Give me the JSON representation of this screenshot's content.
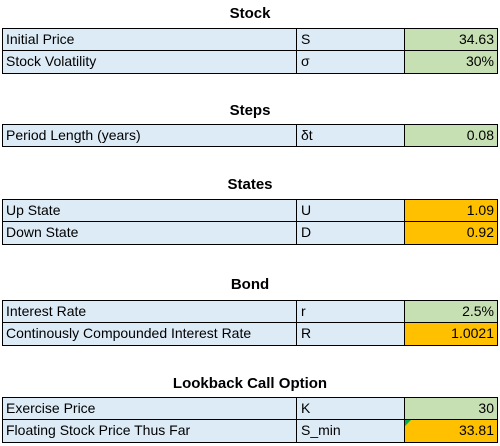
{
  "sections": {
    "stock": {
      "title": "Stock",
      "rows": [
        {
          "label": "Initial Price",
          "symbol": "S",
          "value": "34.63"
        },
        {
          "label": "Stock Volatility",
          "symbol": "σ",
          "value": "30%"
        }
      ]
    },
    "steps": {
      "title": "Steps",
      "rows": [
        {
          "label": "Period Length (years)",
          "symbol": "δt",
          "value": "0.08"
        }
      ]
    },
    "states": {
      "title": "States",
      "rows": [
        {
          "label": "Up State",
          "symbol": "U",
          "value": "1.09"
        },
        {
          "label": "Down State",
          "symbol": "D",
          "value": "0.92"
        }
      ]
    },
    "bond": {
      "title": "Bond",
      "rows": [
        {
          "label": "Interest Rate",
          "symbol": "r",
          "value": "2.5%"
        },
        {
          "label": "Continously Compounded Interest Rate",
          "symbol": "R",
          "value": "1.0021"
        }
      ]
    },
    "lookback": {
      "title": "Lookback Call Option",
      "rows": [
        {
          "label": "Exercise Price",
          "symbol": "K",
          "value": "30"
        },
        {
          "label": "Floating Stock Price Thus Far",
          "symbol": "S_min",
          "value": "33.81"
        }
      ]
    }
  },
  "colors": {
    "label_fill": "#ddebf7",
    "input_fill": "#c6e0b4",
    "calculated_fill": "#ffc000",
    "comment_indicator": "#00b050"
  }
}
